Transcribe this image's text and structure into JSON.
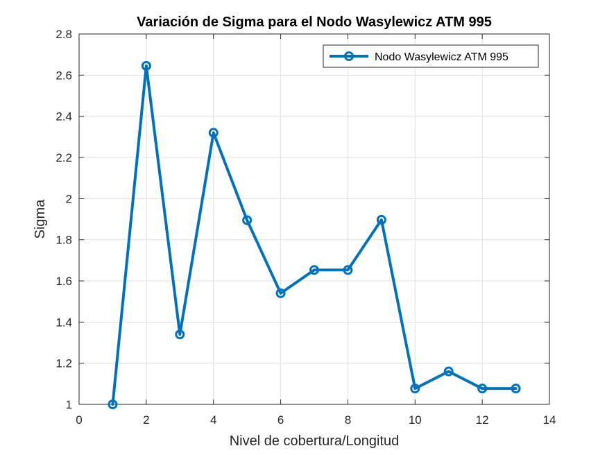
{
  "chart_data": {
    "type": "line",
    "title": "Variación de Sigma para el Nodo Wasylewicz ATM 995",
    "xlabel": "Nivel de cobertura/Longitud",
    "ylabel": "Sigma",
    "xlim": [
      0,
      14
    ],
    "ylim": [
      1,
      2.8
    ],
    "xticks": [
      0,
      2,
      4,
      6,
      8,
      10,
      12,
      14
    ],
    "xtick_labels": [
      "0",
      "2",
      "4",
      "6",
      "8",
      "10",
      "12",
      "14"
    ],
    "yticks": [
      1,
      1.2,
      1.4,
      1.6,
      1.8,
      2,
      2.2,
      2.4,
      2.6,
      2.8
    ],
    "ytick_labels": [
      "1",
      "1.2",
      "1.4",
      "1.6",
      "1.8",
      "2",
      "2.2",
      "2.4",
      "2.6",
      "2.8"
    ],
    "grid": true,
    "legend_position": "top-right",
    "series": [
      {
        "name": "Nodo Wasylewicz ATM 995",
        "color": "#0072BD",
        "marker": "circle",
        "x": [
          1,
          2,
          3,
          4,
          5,
          6,
          7,
          8,
          9,
          10,
          11,
          12,
          13
        ],
        "y": [
          1.0,
          2.645,
          1.34,
          2.32,
          1.895,
          1.54,
          1.653,
          1.653,
          1.897,
          1.077,
          1.16,
          1.077,
          1.077
        ]
      }
    ]
  }
}
